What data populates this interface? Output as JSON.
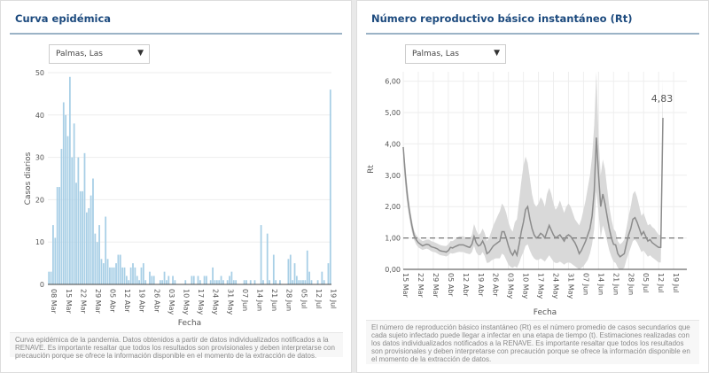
{
  "panels": {
    "epi": {
      "title": "Curva epidémica",
      "select_value": "Palmas, Las",
      "note": "Curva epidémica de la pandemia. Datos obtenidos a partir de datos individualizados notificados a la RENAVE. Es importante resaltar que todos los resultados son provisionales y deben interpretarse con precaución porque se ofrece la información disponible en el momento de la extracción de datos."
    },
    "rt": {
      "title": "Número reproductivo básico instantáneo (Rt)",
      "select_value": "Palmas, Las",
      "note": "El número de reproducción básico instantáneo (Rt) es el número promedio de casos secundarios que cada sujeto infectado puede llegar a infectar en una etapa de tiempo (t). Estimaciones realizadas con los datos individualizados notificados a la RENAVE. Es importante resaltar que todos los resultados son provisionales y deben interpretarse con precaución porque se ofrece la información disponible en el momento de la extracción de datos."
    }
  },
  "icons": {
    "dropdown": "▼"
  },
  "chart_data": [
    {
      "type": "bar",
      "title": "Curva epidémica",
      "xlabel": "Fecha",
      "ylabel": "Casos diarios",
      "ylim": [
        0,
        50
      ],
      "yticks": [
        0,
        10,
        20,
        30,
        40,
        50
      ],
      "grid": true,
      "start_date": "08 Mar",
      "xtick_labels": [
        "08 Mar",
        "15 Mar",
        "22 Mar",
        "29 Mar",
        "05 Abr",
        "12 Abr",
        "19 Abr",
        "26 Abr",
        "03 May",
        "10 May",
        "17 May",
        "24 May",
        "31 May",
        "07 Jun",
        "14 Jun",
        "21 Jun",
        "28 Jun",
        "05 Jul",
        "12 Jul",
        "19 Jul"
      ],
      "bar_color": "#a8cfe6",
      "values": [
        3,
        3,
        14,
        11,
        23,
        23,
        32,
        43,
        40,
        35,
        49,
        30,
        38,
        24,
        30,
        22,
        22,
        31,
        17,
        18,
        21,
        25,
        12,
        10,
        14,
        6,
        5,
        16,
        6,
        4,
        4,
        4,
        5,
        7,
        7,
        4,
        4,
        2,
        1,
        4,
        5,
        4,
        2,
        1,
        4,
        5,
        1,
        0,
        3,
        2,
        2,
        0,
        0,
        1,
        1,
        3,
        1,
        2,
        0,
        2,
        1,
        0,
        0,
        0,
        0,
        1,
        0,
        0,
        2,
        2,
        0,
        2,
        1,
        0,
        2,
        2,
        0,
        1,
        4,
        1,
        1,
        1,
        2,
        1,
        0,
        1,
        2,
        3,
        1,
        1,
        0,
        0,
        0,
        1,
        1,
        0,
        1,
        0,
        1,
        0,
        0,
        14,
        1,
        0,
        12,
        1,
        0,
        7,
        1,
        0,
        1,
        0,
        0,
        0,
        6,
        7,
        1,
        5,
        2,
        1,
        1,
        1,
        1,
        8,
        3,
        1,
        0,
        0,
        1,
        0,
        3,
        1,
        0,
        5,
        46
      ]
    },
    {
      "type": "line",
      "title": "Número reproductivo básico instantáneo (Rt)",
      "xlabel": "Fecha",
      "ylabel": "Rt",
      "ylim": [
        0,
        6.3
      ],
      "yticks": [
        "0,00",
        "1,00",
        "2,00",
        "3,00",
        "4,00",
        "5,00",
        "6,00"
      ],
      "ytick_values": [
        0,
        1,
        2,
        3,
        4,
        5,
        6
      ],
      "grid": true,
      "reference_line": 1.0,
      "start_date": "15 Mar",
      "xtick_labels": [
        "15 Mar",
        "22 Mar",
        "29 Mar",
        "05 Abr",
        "12 Abr",
        "19 Abr",
        "26 Abr",
        "03 May",
        "10 May",
        "17 May",
        "24 May",
        "31 May",
        "07 Jun",
        "14 Jun",
        "21 Jun",
        "28 Jun",
        "05 Jul",
        "12 Jul",
        "19 Jul"
      ],
      "last_value_label": "4,83",
      "line_color": "#8c8c8c",
      "band_color": "#d9d9d9",
      "series": [
        {
          "name": "Rt",
          "values": [
            3.9,
            3.0,
            2.3,
            1.8,
            1.4,
            1.1,
            0.95,
            0.85,
            0.8,
            0.75,
            0.78,
            0.8,
            0.78,
            0.72,
            0.7,
            0.68,
            0.65,
            0.6,
            0.58,
            0.57,
            0.55,
            0.6,
            0.7,
            0.68,
            0.72,
            0.75,
            0.78,
            0.78,
            0.78,
            0.75,
            0.72,
            0.7,
            0.8,
            1.05,
            0.85,
            0.75,
            0.78,
            0.9,
            0.75,
            0.5,
            0.55,
            0.65,
            0.75,
            0.8,
            0.85,
            0.9,
            1.2,
            1.2,
            1.0,
            0.75,
            0.55,
            0.45,
            0.6,
            0.45,
            0.8,
            1.2,
            1.5,
            1.9,
            2.0,
            1.6,
            1.3,
            1.1,
            1.0,
            1.05,
            1.15,
            1.1,
            1.0,
            1.2,
            1.4,
            1.25,
            1.1,
            1.0,
            1.05,
            1.1,
            1.0,
            0.9,
            1.05,
            1.1,
            1.05,
            0.95,
            0.85,
            0.7,
            0.5,
            0.6,
            0.75,
            0.9,
            1.1,
            1.3,
            1.7,
            2.5,
            4.2,
            3.0,
            2.0,
            2.4,
            2.1,
            1.7,
            1.3,
            1.0,
            0.8,
            0.78,
            0.5,
            0.4,
            0.45,
            0.5,
            0.8,
            1.1,
            1.3,
            1.6,
            1.65,
            1.5,
            1.3,
            1.1,
            1.2,
            1.05,
            0.9,
            0.95,
            0.85,
            0.8,
            0.75,
            0.7,
            0.7,
            4.83
          ]
        },
        {
          "name": "upper",
          "values": [
            4.0,
            3.3,
            2.6,
            2.0,
            1.6,
            1.25,
            1.1,
            1.0,
            0.95,
            0.9,
            0.92,
            0.95,
            0.95,
            0.9,
            0.88,
            0.85,
            0.82,
            0.78,
            0.76,
            0.75,
            0.74,
            0.8,
            0.9,
            0.9,
            0.95,
            1.0,
            1.05,
            1.05,
            1.05,
            1.02,
            1.0,
            0.98,
            1.1,
            1.45,
            1.25,
            1.1,
            1.15,
            1.3,
            1.15,
            0.9,
            1.0,
            1.2,
            1.4,
            1.55,
            1.7,
            1.85,
            2.1,
            2.0,
            1.8,
            1.5,
            1.3,
            1.2,
            1.5,
            1.6,
            2.2,
            2.8,
            3.3,
            3.6,
            3.4,
            2.9,
            2.4,
            2.1,
            2.0,
            2.1,
            2.3,
            2.2,
            2.0,
            2.4,
            2.6,
            2.4,
            2.1,
            1.9,
            2.0,
            2.2,
            2.0,
            1.8,
            2.0,
            2.1,
            2.0,
            1.8,
            1.6,
            1.5,
            1.4,
            1.6,
            1.9,
            2.2,
            2.6,
            3.0,
            3.6,
            4.6,
            6.3,
            4.2,
            3.0,
            3.5,
            3.2,
            2.6,
            2.0,
            1.6,
            1.3,
            1.2,
            0.9,
            0.8,
            0.85,
            0.95,
            1.3,
            1.7,
            2.0,
            2.4,
            2.5,
            2.3,
            2.0,
            1.7,
            1.8,
            1.6,
            1.4,
            1.45,
            1.35,
            1.3,
            1.2,
            1.1,
            1.1,
            6.1
          ]
        },
        {
          "name": "lower",
          "values": [
            3.5,
            2.6,
            2.0,
            1.55,
            1.2,
            0.95,
            0.8,
            0.7,
            0.66,
            0.62,
            0.64,
            0.66,
            0.63,
            0.58,
            0.56,
            0.54,
            0.5,
            0.46,
            0.44,
            0.43,
            0.41,
            0.45,
            0.52,
            0.5,
            0.52,
            0.54,
            0.56,
            0.55,
            0.55,
            0.52,
            0.5,
            0.48,
            0.55,
            0.75,
            0.55,
            0.45,
            0.45,
            0.55,
            0.42,
            0.2,
            0.22,
            0.28,
            0.32,
            0.35,
            0.35,
            0.35,
            0.5,
            0.45,
            0.3,
            0.15,
            0.08,
            0.05,
            0.1,
            0.05,
            0.2,
            0.4,
            0.55,
            0.75,
            0.8,
            0.6,
            0.45,
            0.35,
            0.3,
            0.3,
            0.35,
            0.3,
            0.25,
            0.35,
            0.45,
            0.35,
            0.25,
            0.2,
            0.2,
            0.25,
            0.2,
            0.15,
            0.2,
            0.22,
            0.2,
            0.15,
            0.1,
            0.05,
            0.0,
            0.05,
            0.1,
            0.2,
            0.3,
            0.5,
            0.8,
            1.3,
            2.5,
            1.8,
            1.0,
            1.4,
            1.2,
            0.9,
            0.6,
            0.4,
            0.25,
            0.2,
            0.05,
            0.0,
            0.0,
            0.05,
            0.3,
            0.5,
            0.7,
            0.9,
            0.95,
            0.85,
            0.7,
            0.55,
            0.6,
            0.5,
            0.4,
            0.45,
            0.38,
            0.33,
            0.28,
            0.22,
            0.22,
            3.8
          ]
        }
      ]
    }
  ]
}
